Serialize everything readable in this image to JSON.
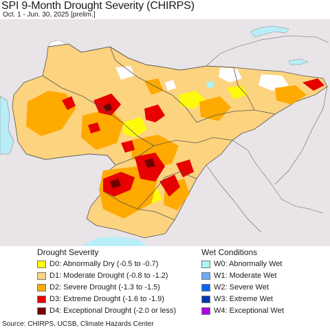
{
  "header": {
    "title": "SPI 9-Month Drought Severity (CHIRPS)",
    "subtitle": "Oct. 1 - Jun. 30, 2025 [prelim.]"
  },
  "legend": {
    "drought": {
      "heading": "Drought Severity",
      "items": [
        {
          "label": "D0: Abnormally Dry (-0.5 to -0.7)",
          "color": "#ffff00"
        },
        {
          "label": "D1: Moderate Drought (-0.8 to -1.2)",
          "color": "#fcd37f"
        },
        {
          "label": "D2: Severe Drought (-1.3 to -1.5)",
          "color": "#ffaa00"
        },
        {
          "label": "D3: Extreme Drought (-1.6 to -1.9)",
          "color": "#e60000"
        },
        {
          "label": "D4: Exceptional Drought (-2.0 or less)",
          "color": "#730000"
        }
      ]
    },
    "wet": {
      "heading": "Wet Conditions",
      "items": [
        {
          "label": "W0: Abnormally Wet",
          "color": "#aaf5ff"
        },
        {
          "label": "W1: Moderate Wet",
          "color": "#6fa8ff"
        },
        {
          "label": "W2: Severe Wet",
          "color": "#0a64f0"
        },
        {
          "label": "W3: Extreme Wet",
          "color": "#0037b0"
        },
        {
          "label": "W4: Exceptional Wet",
          "color": "#aa00e6"
        }
      ]
    }
  },
  "source": "Source: CHIRPS, UCSB, Climate Hazards Center",
  "map_colors": {
    "background": "#e8e4e8",
    "water": "#b8eef8",
    "border": "#555555"
  }
}
